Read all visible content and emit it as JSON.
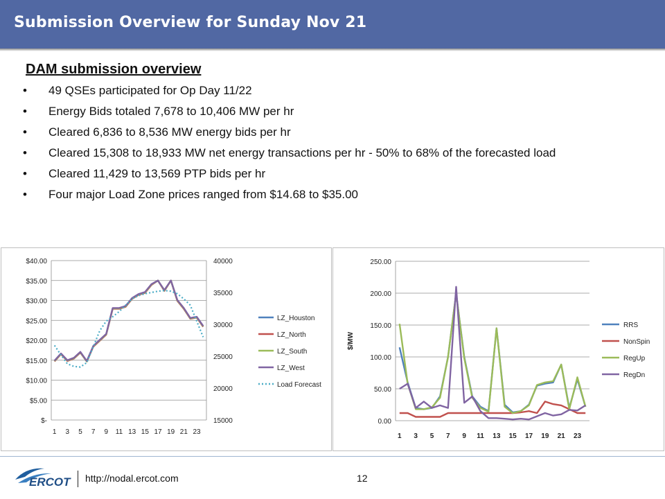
{
  "header": {
    "title": "Submission Overview for Sunday Nov 21"
  },
  "section": {
    "heading": "DAM submission overview",
    "bullets": [
      "49 QSEs participated for Op Day 11/22",
      "Energy Bids totaled 7,678 to 10,406 MW per hr",
      "Cleared 6,836 to 8,536 MW energy bids per hr",
      "Cleared 15,308 to 18,933 MW net energy transactions per hr - 50% to 68% of the forecasted load",
      "Cleared 11,429 to 13,569 PTP bids per hr",
      "Four major Load Zone prices ranged from $14.68 to $35.00"
    ]
  },
  "footer": {
    "url": "http://nodal.ercot.com",
    "page": "12",
    "logo_text": "ERCOT"
  },
  "chart_data": [
    {
      "type": "line",
      "x": [
        1,
        2,
        3,
        4,
        5,
        6,
        7,
        8,
        9,
        10,
        11,
        12,
        13,
        14,
        15,
        16,
        17,
        18,
        19,
        20,
        21,
        22,
        23,
        24
      ],
      "xticks": [
        "1",
        "3",
        "5",
        "7",
        "9",
        "11",
        "13",
        "15",
        "17",
        "19",
        "21",
        "23"
      ],
      "left_ticks": [
        "$40.00",
        "$35.00",
        "$30.00",
        "$25.00",
        "$20.00",
        "$15.00",
        "$10.00",
        "$5.00",
        "$-"
      ],
      "right_ticks": [
        "40000",
        "35000",
        "30000",
        "25000",
        "20000",
        "15000"
      ],
      "ylim": [
        0,
        40
      ],
      "y2lim": [
        15000,
        40000
      ],
      "grid": true,
      "legend_position": "right",
      "series": [
        {
          "name": "LZ_Houston",
          "color": "#4f81bd",
          "axis": "left",
          "dashed": false,
          "values": [
            14.8,
            16.6,
            14.9,
            15.5,
            17.0,
            14.7,
            18.5,
            20.0,
            21.5,
            28.0,
            28.0,
            28.5,
            30.5,
            31.5,
            32.0,
            34.0,
            35.0,
            32.5,
            35.0,
            30.0,
            28.0,
            25.5,
            25.8,
            23.5
          ]
        },
        {
          "name": "LZ_North",
          "color": "#c0504d",
          "axis": "left",
          "dashed": false,
          "values": [
            14.7,
            16.5,
            14.8,
            15.4,
            16.9,
            14.7,
            18.4,
            19.9,
            21.4,
            27.9,
            27.9,
            28.4,
            30.4,
            31.4,
            31.9,
            33.9,
            35.0,
            32.4,
            35.0,
            29.9,
            27.9,
            25.4,
            25.7,
            23.4
          ]
        },
        {
          "name": "LZ_South",
          "color": "#9bbb59",
          "axis": "left",
          "dashed": false,
          "values": [
            14.8,
            16.6,
            14.9,
            15.5,
            17.0,
            14.7,
            18.5,
            20.0,
            21.5,
            28.0,
            28.0,
            28.5,
            30.5,
            31.5,
            32.0,
            34.0,
            35.0,
            32.5,
            35.0,
            30.0,
            28.0,
            25.5,
            25.8,
            23.5
          ]
        },
        {
          "name": "LZ_West",
          "color": "#8064a2",
          "axis": "left",
          "dashed": false,
          "values": [
            14.9,
            16.7,
            15.0,
            15.6,
            17.1,
            14.8,
            18.6,
            20.1,
            21.6,
            28.1,
            28.1,
            28.6,
            30.6,
            31.6,
            32.1,
            34.1,
            35.0,
            32.6,
            35.0,
            30.1,
            28.1,
            25.6,
            25.9,
            23.6
          ]
        },
        {
          "name": "Load Forecast",
          "color": "#4bacc6",
          "axis": "right",
          "dashed": true,
          "values": [
            26700,
            25200,
            23800,
            23400,
            23300,
            24000,
            26500,
            29000,
            30500,
            31200,
            32000,
            33000,
            34000,
            34500,
            34800,
            35000,
            35200,
            35300,
            35200,
            34800,
            34000,
            33000,
            30500,
            28000
          ]
        }
      ]
    },
    {
      "type": "line",
      "x": [
        1,
        2,
        3,
        4,
        5,
        6,
        7,
        8,
        9,
        10,
        11,
        12,
        13,
        14,
        15,
        16,
        17,
        18,
        19,
        20,
        21,
        22,
        23,
        24
      ],
      "xticks": [
        "1",
        "3",
        "5",
        "7",
        "9",
        "11",
        "13",
        "15",
        "17",
        "19",
        "21",
        "23"
      ],
      "yticks": [
        "250.00",
        "200.00",
        "150.00",
        "100.00",
        "50.00",
        "0.00"
      ],
      "ylim": [
        0,
        250
      ],
      "ylabel": "$/MW",
      "grid": true,
      "legend_position": "right",
      "series": [
        {
          "name": "RRS",
          "color": "#4f81bd",
          "values": [
            115,
            60,
            20,
            18,
            20,
            38,
            100,
            200,
            100,
            38,
            22,
            15,
            145,
            25,
            13,
            15,
            25,
            55,
            58,
            60,
            88,
            20,
            65,
            22
          ]
        },
        {
          "name": "NonSpin",
          "color": "#c0504d",
          "values": [
            12,
            12,
            6,
            6,
            6,
            6,
            12,
            12,
            12,
            12,
            12,
            12,
            12,
            12,
            12,
            13,
            15,
            12,
            30,
            26,
            24,
            18,
            12,
            12
          ]
        },
        {
          "name": "RegUp",
          "color": "#9bbb59",
          "values": [
            152,
            58,
            18,
            18,
            21,
            36,
            100,
            200,
            98,
            36,
            20,
            14,
            145,
            22,
            12,
            15,
            24,
            56,
            60,
            62,
            88,
            18,
            68,
            22
          ]
        },
        {
          "name": "RegDn",
          "color": "#8064a2",
          "values": [
            50,
            58,
            20,
            30,
            20,
            24,
            20,
            210,
            28,
            38,
            15,
            4,
            4,
            3,
            2,
            3,
            2,
            7,
            12,
            8,
            10,
            17,
            16,
            24
          ]
        }
      ]
    }
  ]
}
